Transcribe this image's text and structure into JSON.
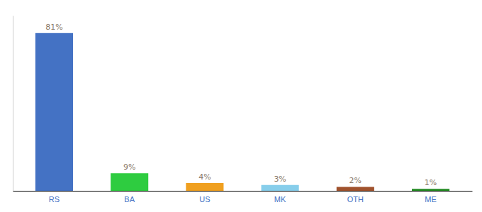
{
  "chart_data": {
    "type": "bar",
    "categories": [
      "RS",
      "BA",
      "US",
      "MK",
      "OTH",
      "ME"
    ],
    "values": [
      81,
      9,
      4,
      3,
      2,
      1
    ],
    "value_labels": [
      "81%",
      "9%",
      "4%",
      "3%",
      "2%",
      "1%"
    ],
    "colors": [
      "#4472c4",
      "#2ecc40",
      "#f0a020",
      "#87ceeb",
      "#a0522d",
      "#228b22"
    ],
    "ylim": [
      0,
      90
    ],
    "grid": false,
    "data_labels": true,
    "tick_labels": "x"
  }
}
